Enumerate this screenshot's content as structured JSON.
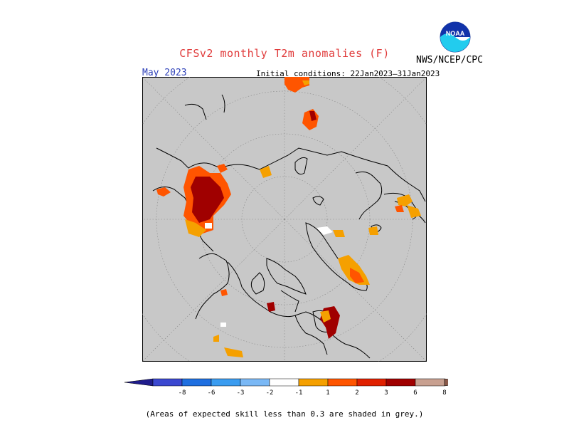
{
  "header": {
    "title": "CFSv2 monthly T2m anomalies (F)",
    "month": "May 2023",
    "initial_conditions": "Initial conditions: 22Jan2023–31Jan2023",
    "agency": "NWS/NCEP/CPC",
    "logo_text": "NOAA"
  },
  "map": {
    "projection": "north-polar-stereographic",
    "background_color": "#c8c8c8"
  },
  "legend": {
    "ticks": [
      "-8",
      "-6",
      "-3",
      "-2",
      "-1",
      "1",
      "2",
      "3",
      "6",
      "8"
    ],
    "colors": [
      "#1f1c8c",
      "#3b48d0",
      "#1f6fe0",
      "#3a9cf0",
      "#7ab8f5",
      "#ffffff",
      "#f5a000",
      "#ff5500",
      "#e02000",
      "#a00000",
      "#c8a090",
      "#8a5a4a"
    ]
  },
  "footnote": "(Areas of expected skill less than 0.3 are shaded in grey.)"
}
